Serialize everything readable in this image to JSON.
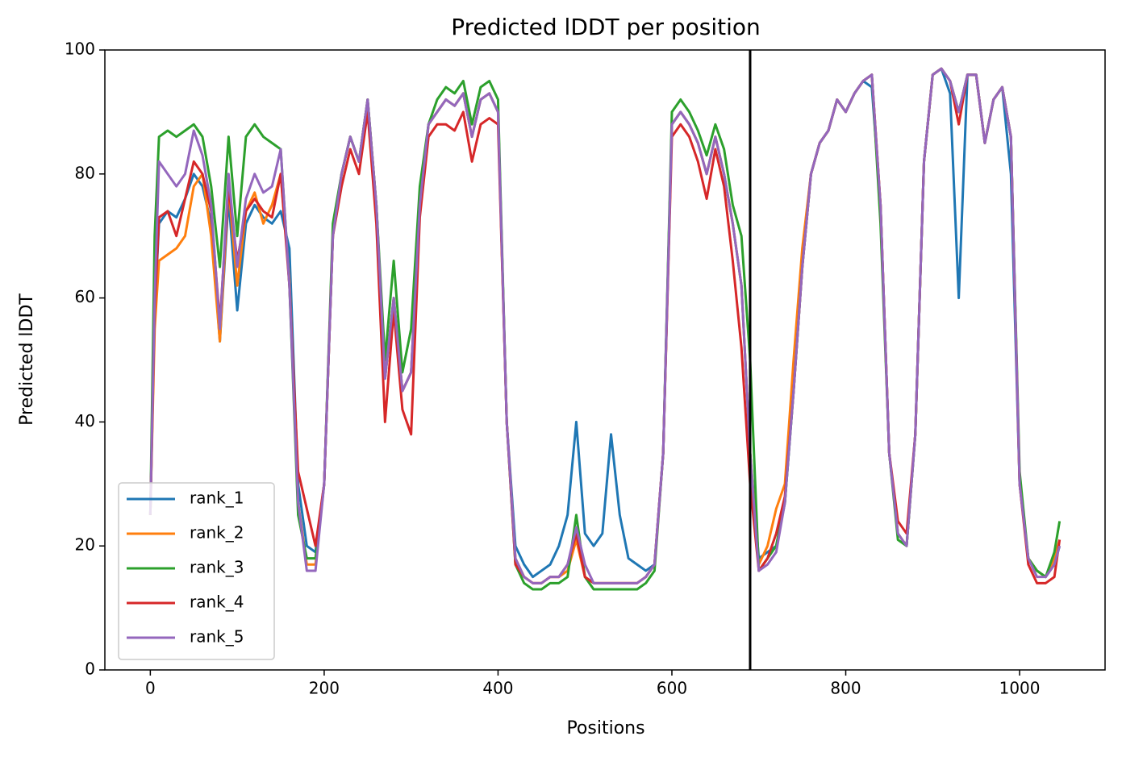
{
  "chart_data": {
    "type": "line",
    "title": "Predicted lDDT per position",
    "xlabel": "Positions",
    "ylabel": "Predicted lDDT",
    "xlim": [
      -52.3,
      1098.3
    ],
    "ylim": [
      0,
      100
    ],
    "xticks": [
      0,
      200,
      400,
      600,
      800,
      1000
    ],
    "yticks": [
      0,
      20,
      40,
      60,
      80,
      100
    ],
    "legend": "lower left",
    "vline": 690,
    "vline_color": "#000000",
    "x": [
      0,
      5,
      10,
      20,
      30,
      40,
      50,
      60,
      70,
      80,
      90,
      100,
      110,
      120,
      130,
      140,
      150,
      160,
      170,
      180,
      190,
      200,
      210,
      220,
      230,
      240,
      250,
      260,
      270,
      280,
      290,
      300,
      310,
      320,
      330,
      340,
      350,
      360,
      370,
      380,
      390,
      400,
      410,
      420,
      430,
      440,
      450,
      460,
      470,
      480,
      490,
      500,
      510,
      520,
      530,
      540,
      550,
      560,
      570,
      580,
      590,
      600,
      610,
      620,
      630,
      640,
      650,
      660,
      670,
      680,
      690,
      700,
      710,
      720,
      730,
      740,
      750,
      760,
      770,
      780,
      790,
      800,
      810,
      820,
      830,
      840,
      850,
      860,
      870,
      880,
      890,
      900,
      910,
      920,
      930,
      940,
      950,
      960,
      970,
      980,
      990,
      1000,
      1010,
      1020,
      1030,
      1040,
      1046
    ],
    "series": [
      {
        "name": "rank_1",
        "color": "#1f77b4",
        "values": [
          25,
          58,
          72,
          74,
          73,
          76,
          80,
          78,
          72,
          53,
          76,
          58,
          72,
          75,
          73,
          72,
          74,
          68,
          30,
          20,
          19,
          30,
          70,
          80,
          86,
          82,
          92,
          75,
          47,
          60,
          45,
          48,
          75,
          88,
          90,
          92,
          91,
          93,
          86,
          92,
          93,
          90,
          40,
          20,
          17,
          15,
          16,
          17,
          20,
          25,
          40,
          22,
          20,
          22,
          38,
          25,
          18,
          17,
          16,
          17,
          35,
          88,
          90,
          88,
          85,
          80,
          86,
          80,
          72,
          62,
          35,
          18,
          19,
          20,
          27,
          45,
          65,
          80,
          85,
          87,
          92,
          90,
          93,
          95,
          94,
          75,
          35,
          22,
          20,
          38,
          82,
          96,
          97,
          93,
          60,
          96,
          96,
          85,
          92,
          94,
          80,
          30,
          18,
          16,
          15,
          17,
          20
        ]
      },
      {
        "name": "rank_2",
        "color": "#ff7f0e",
        "values": [
          25,
          55,
          66,
          67,
          68,
          70,
          78,
          80,
          70,
          53,
          78,
          62,
          74,
          77,
          72,
          75,
          80,
          63,
          27,
          17,
          17,
          30,
          70,
          80,
          86,
          82,
          92,
          75,
          47,
          60,
          45,
          48,
          75,
          88,
          90,
          92,
          91,
          93,
          86,
          92,
          93,
          90,
          40,
          18,
          15,
          14,
          14,
          15,
          15,
          16,
          21,
          15,
          14,
          14,
          14,
          14,
          14,
          14,
          15,
          17,
          35,
          88,
          90,
          88,
          85,
          80,
          86,
          80,
          72,
          62,
          35,
          17,
          20,
          26,
          30,
          50,
          68,
          80,
          85,
          87,
          92,
          90,
          93,
          95,
          96,
          75,
          35,
          22,
          20,
          38,
          82,
          96,
          97,
          95,
          90,
          96,
          96,
          85,
          92,
          94,
          86,
          30,
          18,
          16,
          15,
          18,
          21
        ]
      },
      {
        "name": "rank_3",
        "color": "#2ca02c",
        "values": [
          25,
          70,
          86,
          87,
          86,
          87,
          88,
          86,
          78,
          65,
          86,
          70,
          86,
          88,
          86,
          85,
          84,
          62,
          25,
          18,
          18,
          30,
          72,
          80,
          86,
          82,
          92,
          75,
          50,
          66,
          48,
          55,
          78,
          88,
          92,
          94,
          93,
          95,
          88,
          94,
          95,
          92,
          40,
          17,
          14,
          13,
          13,
          14,
          14,
          15,
          25,
          15,
          13,
          13,
          13,
          13,
          13,
          13,
          14,
          16,
          35,
          90,
          92,
          90,
          87,
          83,
          88,
          84,
          75,
          70,
          50,
          16,
          18,
          20,
          27,
          45,
          65,
          80,
          85,
          87,
          92,
          90,
          93,
          95,
          96,
          72,
          35,
          21,
          20,
          38,
          82,
          96,
          97,
          95,
          90,
          96,
          96,
          85,
          92,
          94,
          86,
          32,
          18,
          16,
          15,
          19,
          24
        ]
      },
      {
        "name": "rank_4",
        "color": "#d62728",
        "values": [
          25,
          58,
          73,
          74,
          70,
          76,
          82,
          80,
          74,
          56,
          78,
          66,
          74,
          76,
          74,
          73,
          80,
          62,
          32,
          26,
          20,
          30,
          70,
          78,
          84,
          80,
          90,
          72,
          40,
          58,
          42,
          38,
          73,
          86,
          88,
          88,
          87,
          90,
          82,
          88,
          89,
          88,
          40,
          17,
          15,
          14,
          14,
          15,
          15,
          17,
          22,
          15,
          14,
          14,
          14,
          14,
          14,
          14,
          15,
          17,
          35,
          86,
          88,
          86,
          82,
          76,
          84,
          78,
          66,
          52,
          30,
          16,
          18,
          22,
          28,
          45,
          65,
          80,
          85,
          87,
          92,
          90,
          93,
          95,
          96,
          75,
          35,
          24,
          22,
          38,
          82,
          96,
          97,
          95,
          88,
          96,
          96,
          85,
          92,
          94,
          86,
          30,
          17,
          14,
          14,
          15,
          21
        ]
      },
      {
        "name": "rank_5",
        "color": "#9467bd",
        "values": [
          25,
          60,
          82,
          80,
          78,
          80,
          87,
          83,
          75,
          55,
          80,
          65,
          76,
          80,
          77,
          78,
          84,
          62,
          27,
          16,
          16,
          30,
          70,
          80,
          86,
          82,
          92,
          75,
          47,
          60,
          45,
          48,
          75,
          88,
          90,
          92,
          91,
          93,
          86,
          92,
          93,
          90,
          40,
          18,
          15,
          14,
          14,
          15,
          15,
          17,
          23,
          17,
          14,
          14,
          14,
          14,
          14,
          14,
          15,
          17,
          35,
          88,
          90,
          88,
          85,
          80,
          86,
          80,
          72,
          62,
          35,
          16,
          17,
          19,
          27,
          45,
          65,
          80,
          85,
          87,
          92,
          90,
          93,
          95,
          96,
          75,
          35,
          22,
          20,
          38,
          82,
          96,
          97,
          95,
          90,
          96,
          96,
          85,
          92,
          94,
          86,
          30,
          18,
          15,
          15,
          17,
          20
        ]
      }
    ]
  }
}
